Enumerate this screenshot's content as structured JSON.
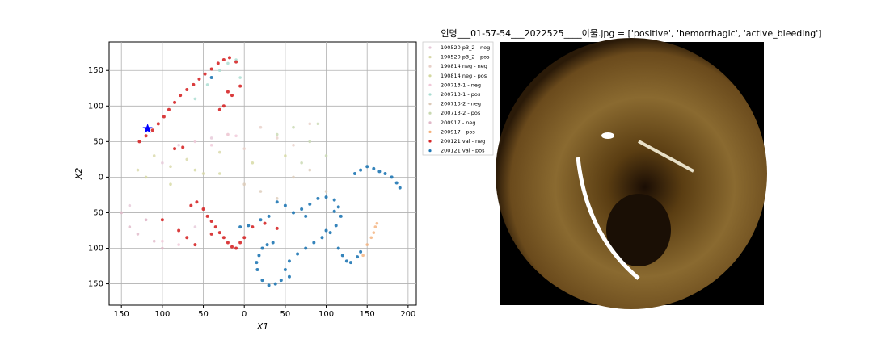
{
  "chart_data": {
    "type": "scatter",
    "title": "인명___01-57-54___2022525____이물.jpg = ['positive', 'hemorrhagic', 'active_bleeding']",
    "xlabel": "X1",
    "ylabel": "X2",
    "xlim": [
      -165,
      210
    ],
    "ylim": [
      -180,
      190
    ],
    "xticks": [
      {
        "value": -150,
        "label": "150"
      },
      {
        "value": -100,
        "label": "100"
      },
      {
        "value": -50,
        "label": "50"
      },
      0,
      50,
      100,
      150,
      200
    ],
    "yticks": [
      {
        "value": -150,
        "label": "150"
      },
      {
        "value": -100,
        "label": "100"
      },
      {
        "value": -50,
        "label": "50"
      },
      0,
      50,
      100,
      150
    ],
    "grid": true,
    "legend": "outside right",
    "highlight": {
      "x": -118,
      "y": 68,
      "color": "#0000ff"
    },
    "series": [
      {
        "name": "190520 p3_2 - neg",
        "color": "#e6c8d8",
        "x": [
          -140,
          -120,
          -100,
          -80,
          -60,
          -40
        ],
        "y": [
          -40,
          -60,
          20,
          45,
          -70,
          55
        ]
      },
      {
        "name": "190520 p3_2 - pos",
        "color": "#d8d8a8",
        "x": [
          -130,
          -110,
          -90,
          -70,
          -50,
          -30
        ],
        "y": [
          10,
          30,
          15,
          25,
          5,
          35
        ]
      },
      {
        "name": "190814 neg - neg",
        "color": "#e8d0c8",
        "x": [
          -20,
          0,
          20,
          40,
          60,
          80
        ],
        "y": [
          60,
          40,
          70,
          55,
          45,
          75
        ]
      },
      {
        "name": "190814 neg - pos",
        "color": "#d4d8a0",
        "x": [
          -120,
          -90,
          -60,
          -30,
          10,
          50
        ],
        "y": [
          0,
          -10,
          10,
          5,
          20,
          30
        ]
      },
      {
        "name": "200713-1 - neg",
        "color": "#f0c8d8",
        "x": [
          -100,
          -80,
          -60,
          -40,
          -20,
          -10
        ],
        "y": [
          -90,
          -95,
          50,
          45,
          60,
          58
        ]
      },
      {
        "name": "200713-1 - pos",
        "color": "#a8dcd0",
        "x": [
          -60,
          -45,
          -30,
          -20,
          -10,
          -5
        ],
        "y": [
          110,
          130,
          150,
          160,
          165,
          140
        ]
      },
      {
        "name": "200713-2 - neg",
        "color": "#dccab8",
        "x": [
          0,
          20,
          40,
          60,
          80,
          100
        ],
        "y": [
          -10,
          -20,
          -30,
          0,
          10,
          -20
        ]
      },
      {
        "name": "200713-2 - pos",
        "color": "#c8d8b0",
        "x": [
          40,
          60,
          80,
          90,
          100,
          70
        ],
        "y": [
          60,
          70,
          50,
          75,
          30,
          20
        ]
      },
      {
        "name": "200917 - neg",
        "color": "#e0b8c8",
        "x": [
          -150,
          -140,
          -130,
          -120,
          -110,
          -100
        ],
        "y": [
          -50,
          -70,
          -80,
          -60,
          -90,
          -100
        ]
      },
      {
        "name": "200917 - pos",
        "color": "#f4b07a",
        "x": [
          145,
          150,
          155,
          158,
          160,
          162
        ],
        "y": [
          -110,
          -95,
          -85,
          -78,
          -70,
          -65
        ]
      },
      {
        "name": "200121 val - neg",
        "color": "#d62728",
        "x": [
          -128,
          -120,
          -112,
          -105,
          -98,
          -92,
          -85,
          -78,
          -70,
          -62,
          -55,
          -48,
          -40,
          -32,
          -25,
          -18,
          -10,
          -20,
          -15,
          -5,
          -30,
          -25,
          -65,
          -58,
          -50,
          -45,
          -40,
          -35,
          -30,
          -25,
          -20,
          -15,
          -10,
          -5,
          0,
          10,
          25,
          40,
          -100,
          -80,
          -70,
          -60,
          -85,
          -75,
          -40
        ],
        "y": [
          50,
          58,
          66,
          75,
          85,
          95,
          105,
          115,
          123,
          130,
          138,
          145,
          152,
          160,
          165,
          168,
          162,
          120,
          115,
          128,
          95,
          100,
          -40,
          -35,
          -45,
          -55,
          -62,
          -70,
          -78,
          -85,
          -92,
          -98,
          -100,
          -92,
          -85,
          -70,
          -65,
          -72,
          -60,
          -75,
          -85,
          -95,
          40,
          42,
          -80
        ]
      },
      {
        "name": "200121 val - pos",
        "color": "#1f77b4",
        "x": [
          135,
          142,
          150,
          158,
          165,
          172,
          180,
          186,
          190,
          -5,
          5,
          20,
          30,
          40,
          50,
          60,
          70,
          80,
          90,
          100,
          110,
          115,
          118,
          112,
          105,
          95,
          85,
          75,
          65,
          55,
          50,
          45,
          38,
          30,
          22,
          16,
          15,
          18,
          22,
          28,
          35,
          115,
          120,
          125,
          130,
          138,
          142,
          100,
          110,
          75,
          -40,
          55
        ],
        "y": [
          5,
          10,
          15,
          12,
          8,
          5,
          0,
          -8,
          -15,
          -70,
          -68,
          -60,
          -55,
          -35,
          -40,
          -50,
          -45,
          -38,
          -30,
          -28,
          -32,
          -42,
          -55,
          -68,
          -78,
          -85,
          -92,
          -100,
          -108,
          -118,
          -130,
          -145,
          -150,
          -152,
          -145,
          -130,
          -120,
          -110,
          -100,
          -95,
          -92,
          -100,
          -110,
          -118,
          -120,
          -112,
          -105,
          -75,
          -48,
          -55,
          140,
          -140
        ]
      }
    ]
  }
}
